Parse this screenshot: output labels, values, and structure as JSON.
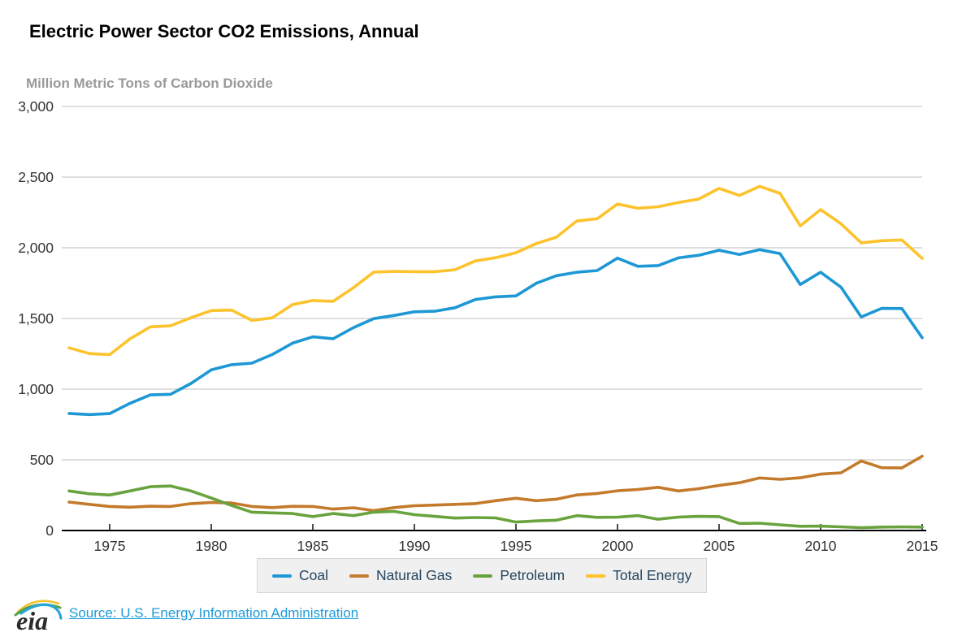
{
  "header": {
    "title": "Electric Power Sector CO2 Emissions, Annual",
    "subtitle": "Million Metric Tons of Carbon Dioxide"
  },
  "footer": {
    "logo_text": "eia",
    "source_label": "Source: U.S. Energy Information Administration"
  },
  "palette": {
    "grid": "#cccccc",
    "axis": "#000000",
    "tick_text": "#333333",
    "subtitle_text": "#999999",
    "link": "#1b9bd8",
    "legend_bg": "#f0f0f0",
    "legend_border": "#d4d4d4",
    "legend_text": "#26455e",
    "logo_yellow": "#f3c02f",
    "logo_green": "#4da33f",
    "logo_blue": "#2aa5d8"
  },
  "chart_data": {
    "type": "line",
    "title": "Electric Power Sector CO2 Emissions, Annual",
    "xlabel": "",
    "ylabel": "Million Metric Tons of Carbon Dioxide",
    "ylim": [
      0,
      3000
    ],
    "y_ticks": [
      0,
      500,
      1000,
      1500,
      2000,
      2500,
      3000
    ],
    "x_ticks": [
      1975,
      1980,
      1985,
      1990,
      1995,
      2000,
      2005,
      2010,
      2015
    ],
    "grid": "horizontal",
    "legend_position": "bottom",
    "x": [
      1973,
      1974,
      1975,
      1976,
      1977,
      1978,
      1979,
      1980,
      1981,
      1982,
      1983,
      1984,
      1985,
      1986,
      1987,
      1988,
      1989,
      1990,
      1991,
      1992,
      1993,
      1994,
      1995,
      1996,
      1997,
      1998,
      1999,
      2000,
      2001,
      2002,
      2003,
      2004,
      2005,
      2006,
      2007,
      2008,
      2009,
      2010,
      2011,
      2012,
      2013,
      2014,
      2015
    ],
    "series": [
      {
        "name": "Coal",
        "key": "coal",
        "color": "#1e98d5",
        "values": [
          828,
          820,
          827,
          900,
          959,
          964,
          1040,
          1136,
          1173,
          1184,
          1245,
          1325,
          1370,
          1357,
          1435,
          1499,
          1521,
          1547,
          1551,
          1576,
          1634,
          1653,
          1660,
          1749,
          1803,
          1827,
          1839,
          1927,
          1869,
          1874,
          1929,
          1947,
          1983,
          1953,
          1987,
          1959,
          1740,
          1827,
          1722,
          1511,
          1571,
          1570,
          1364
        ]
      },
      {
        "name": "Natural Gas",
        "key": "natural-gas",
        "color": "#c47a2b",
        "values": [
          201,
          185,
          170,
          165,
          172,
          170,
          190,
          198,
          195,
          170,
          162,
          171,
          170,
          152,
          161,
          141,
          162,
          175,
          180,
          185,
          190,
          211,
          228,
          211,
          222,
          252,
          262,
          281,
          290,
          306,
          280,
          296,
          319,
          338,
          372,
          362,
          373,
          399,
          408,
          492,
          444,
          443,
          526
        ]
      },
      {
        "name": "Petroleum",
        "key": "petroleum",
        "color": "#69a33d",
        "values": [
          280,
          260,
          251,
          280,
          310,
          315,
          280,
          230,
          177,
          130,
          125,
          120,
          98,
          120,
          105,
          130,
          135,
          112,
          100,
          88,
          92,
          89,
          60,
          68,
          73,
          105,
          93,
          94,
          105,
          80,
          95,
          100,
          98,
          50,
          52,
          40,
          30,
          31,
          26,
          20,
          24,
          25,
          24
        ]
      },
      {
        "name": "Total Energy",
        "key": "total-energy",
        "color": "#fdc32d",
        "values": [
          1292,
          1252,
          1244,
          1356,
          1441,
          1448,
          1505,
          1556,
          1559,
          1486,
          1504,
          1598,
          1627,
          1621,
          1718,
          1828,
          1833,
          1831,
          1831,
          1845,
          1907,
          1930,
          1965,
          2030,
          2075,
          2190,
          2205,
          2310,
          2280,
          2290,
          2320,
          2345,
          2420,
          2370,
          2435,
          2385,
          2155,
          2270,
          2170,
          2035,
          2050,
          2055,
          1925
        ]
      }
    ]
  }
}
